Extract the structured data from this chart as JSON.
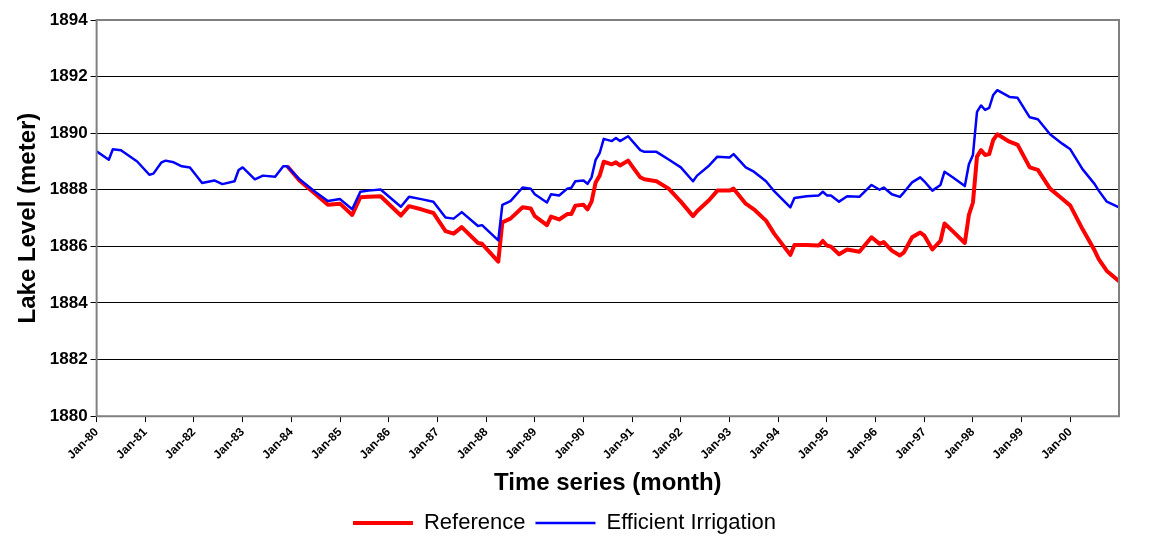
{
  "chart_data": {
    "type": "line",
    "xlabel": "Time series (month)",
    "ylabel": "Lake Level (meter)",
    "x": [
      "1980-01",
      "1980-04",
      "1980-05",
      "1980-07",
      "1980-11",
      "1981-02",
      "1981-03",
      "1981-05",
      "1981-06",
      "1981-08",
      "1981-10",
      "1981-12",
      "1982-03",
      "1982-06",
      "1982-08",
      "1982-11",
      "1982-12",
      "1983-01",
      "1983-04",
      "1983-06",
      "1983-09",
      "1983-11",
      "1983-12",
      "1984-03",
      "1984-07",
      "1984-10",
      "1985-01",
      "1985-04",
      "1985-06",
      "1985-08",
      "1985-11",
      "1986-04",
      "1986-06",
      "1986-09",
      "1986-12",
      "1987-03",
      "1987-05",
      "1987-07",
      "1987-11",
      "1987-12",
      "1988-04",
      "1988-05",
      "1988-07",
      "1988-10",
      "1988-12",
      "1989-01",
      "1989-04",
      "1989-05",
      "1989-07",
      "1989-09",
      "1989-10",
      "1989-11",
      "1990-01",
      "1990-02",
      "1990-03",
      "1990-04",
      "1990-05",
      "1990-06",
      "1990-08",
      "1990-09",
      "1990-10",
      "1990-12",
      "1991-03",
      "1991-04",
      "1991-07",
      "1991-10",
      "1992-01",
      "1992-04",
      "1992-05",
      "1992-08",
      "1992-10",
      "1993-01",
      "1993-02",
      "1993-05",
      "1993-07",
      "1993-10",
      "1993-12",
      "1994-04",
      "1994-05",
      "1994-08",
      "1994-11",
      "1994-12",
      "1995-01",
      "1995-02",
      "1995-04",
      "1995-06",
      "1995-09",
      "1995-12",
      "1996-02",
      "1996-03",
      "1996-05",
      "1996-07",
      "1996-08",
      "1996-10",
      "1996-12",
      "1997-01",
      "1997-03",
      "1997-05",
      "1997-06",
      "1997-08",
      "1997-11",
      "1997-12",
      "1998-01",
      "1998-02",
      "1998-03",
      "1998-04",
      "1998-05",
      "1998-06",
      "1998-07",
      "1998-10",
      "1998-12",
      "1999-03",
      "1999-05",
      "1999-08",
      "1999-11",
      "2000-01",
      "2000-04",
      "2000-07",
      "2000-08",
      "2000-10",
      "2001-01"
    ],
    "series": [
      {
        "name": "Reference",
        "color": "#ff0000",
        "values": [
          null,
          null,
          null,
          null,
          null,
          null,
          null,
          null,
          null,
          null,
          null,
          null,
          null,
          null,
          null,
          null,
          null,
          null,
          null,
          null,
          null,
          null,
          1888.83,
          1888.33,
          1887.84,
          1887.47,
          1887.51,
          1887.11,
          1887.74,
          1887.75,
          1887.77,
          1887.09,
          1887.42,
          1887.31,
          1887.18,
          1886.54,
          1886.45,
          1886.68,
          1886.12,
          1886.09,
          1885.46,
          1886.85,
          1886.98,
          1887.38,
          1887.34,
          1887.07,
          1886.75,
          1887.05,
          1886.95,
          1887.14,
          1887.14,
          1887.44,
          1887.47,
          1887.31,
          1887.58,
          1888.26,
          1888.5,
          1888.99,
          1888.9,
          1888.97,
          1888.86,
          1889.03,
          1888.44,
          1888.37,
          1888.3,
          1888.04,
          1887.58,
          1887.07,
          1887.24,
          1887.64,
          1887.97,
          1887.97,
          1888.04,
          1887.51,
          1887.31,
          1886.91,
          1886.45,
          1885.7,
          1886.05,
          1886.05,
          1886.03,
          1886.19,
          1886.03,
          1885.99,
          1885.72,
          1885.89,
          1885.81,
          1886.32,
          1886.09,
          1886.15,
          1885.85,
          1885.68,
          1885.79,
          1886.32,
          1886.49,
          1886.38,
          1885.89,
          1886.19,
          1886.81,
          1886.54,
          1886.12,
          1887.11,
          1887.55,
          1889.17,
          1889.4,
          1889.23,
          1889.26,
          1889.76,
          1889.96,
          1889.7,
          1889.59,
          1888.79,
          1888.7,
          1888.04,
          1887.68,
          1887.44,
          1886.61,
          1885.85,
          1885.55,
          1885.13,
          1884.77
        ]
      },
      {
        "name": "Efficient Irrigation",
        "color": "#0000ff",
        "values": [
          1889.36,
          1889.06,
          1889.43,
          1889.4,
          1889.0,
          1888.53,
          1888.57,
          1888.97,
          1889.03,
          1888.97,
          1888.83,
          1888.79,
          1888.24,
          1888.33,
          1888.2,
          1888.3,
          1888.7,
          1888.79,
          1888.37,
          1888.5,
          1888.46,
          1888.83,
          1888.83,
          1888.37,
          1887.91,
          1887.6,
          1887.67,
          1887.31,
          1887.93,
          1887.97,
          1888.01,
          1887.4,
          1887.75,
          1887.67,
          1887.58,
          1887.02,
          1886.98,
          1887.21,
          1886.72,
          1886.75,
          1886.21,
          1887.47,
          1887.6,
          1888.08,
          1888.04,
          1887.84,
          1887.55,
          1887.84,
          1887.8,
          1888.04,
          1888.07,
          1888.3,
          1888.33,
          1888.21,
          1888.44,
          1889.06,
          1889.3,
          1889.8,
          1889.72,
          1889.83,
          1889.72,
          1889.89,
          1889.4,
          1889.34,
          1889.34,
          1889.07,
          1888.79,
          1888.3,
          1888.5,
          1888.86,
          1889.17,
          1889.14,
          1889.26,
          1888.79,
          1888.64,
          1888.3,
          1887.95,
          1887.38,
          1887.71,
          1887.77,
          1887.8,
          1887.93,
          1887.8,
          1887.8,
          1887.58,
          1887.77,
          1887.75,
          1888.17,
          1888.0,
          1888.08,
          1887.84,
          1887.75,
          1887.91,
          1888.26,
          1888.44,
          1888.3,
          1887.97,
          1888.17,
          1888.64,
          1888.44,
          1888.13,
          1888.9,
          1889.23,
          1890.75,
          1890.98,
          1890.82,
          1890.89,
          1891.35,
          1891.52,
          1891.28,
          1891.25,
          1890.56,
          1890.49,
          1889.96,
          1889.63,
          1889.43,
          1888.73,
          1888.2,
          1887.97,
          1887.58,
          1887.38
        ]
      }
    ],
    "xlim": [
      "1980-01",
      "2001-01"
    ],
    "xticks": [
      {
        "value": "1980-01",
        "label": "Jan-80"
      },
      {
        "value": "1981-01",
        "label": "Jan-81"
      },
      {
        "value": "1982-01",
        "label": "Jan-82"
      },
      {
        "value": "1983-01",
        "label": "Jan-83"
      },
      {
        "value": "1984-01",
        "label": "Jan-84"
      },
      {
        "value": "1985-01",
        "label": "Jan-85"
      },
      {
        "value": "1986-01",
        "label": "Jan-86"
      },
      {
        "value": "1987-01",
        "label": "Jan-87"
      },
      {
        "value": "1988-01",
        "label": "Jan-88"
      },
      {
        "value": "1989-01",
        "label": "Jan-89"
      },
      {
        "value": "1990-01",
        "label": "Jan-90"
      },
      {
        "value": "1991-01",
        "label": "Jan-91"
      },
      {
        "value": "1992-01",
        "label": "Jan-92"
      },
      {
        "value": "1993-01",
        "label": "Jan-93"
      },
      {
        "value": "1994-01",
        "label": "Jan-94"
      },
      {
        "value": "1995-01",
        "label": "Jan-95"
      },
      {
        "value": "1996-01",
        "label": "Jan-96"
      },
      {
        "value": "1997-01",
        "label": "Jan-97"
      },
      {
        "value": "1998-01",
        "label": "Jan-98"
      },
      {
        "value": "1999-01",
        "label": "Jan-99"
      },
      {
        "value": "2000-01",
        "label": "Jan-00"
      }
    ],
    "ylim": [
      1880,
      1894
    ],
    "yticks": [
      1880,
      1882,
      1884,
      1886,
      1888,
      1890,
      1892,
      1894
    ],
    "grid": "y",
    "legend": "bottom",
    "marker": "none",
    "line_style": "solid"
  }
}
